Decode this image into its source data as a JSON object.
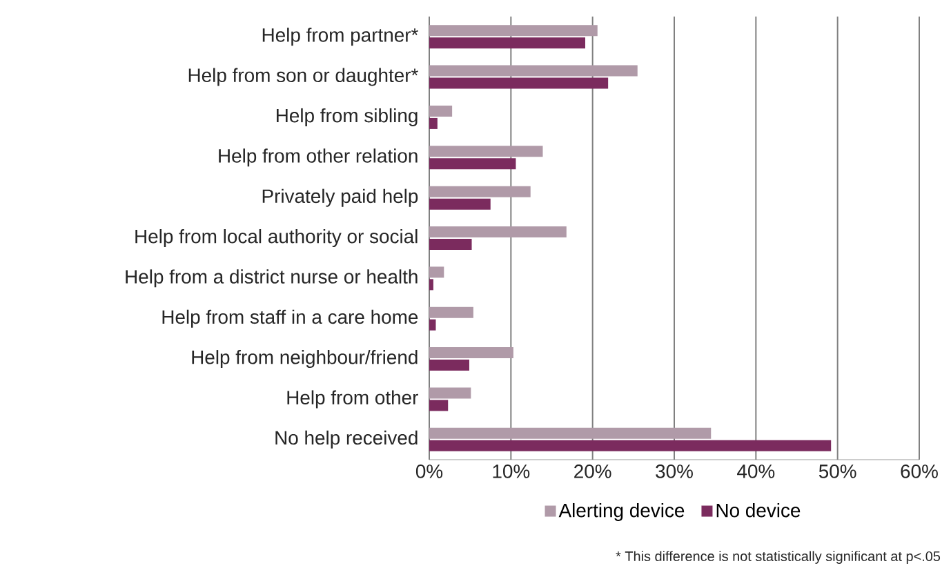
{
  "chart_data": {
    "type": "bar",
    "orientation": "horizontal",
    "categories": [
      "Help from partner*",
      "Help from son or daughter*",
      "Help from sibling",
      "Help from other relation",
      "Privately paid help",
      "Help from local authority or social",
      "Help from a district nurse or health",
      "Help from staff in a care home",
      "Help from neighbour/friend",
      "Help from other",
      "No help received"
    ],
    "series": [
      {
        "name": "Alerting device",
        "color": "#b09aa8",
        "values": [
          20.6,
          25.5,
          2.8,
          13.9,
          12.4,
          16.8,
          1.8,
          5.4,
          10.3,
          5.1,
          34.5
        ]
      },
      {
        "name": "No device",
        "color": "#7b2b5e",
        "values": [
          19.1,
          21.9,
          1.0,
          10.6,
          7.5,
          5.2,
          0.5,
          0.8,
          4.9,
          2.3,
          49.2
        ]
      }
    ],
    "xlim": [
      0,
      60
    ],
    "xticks": [
      {
        "value": 0,
        "label": "0%"
      },
      {
        "value": 10,
        "label": "10%"
      },
      {
        "value": 20,
        "label": "20%"
      },
      {
        "value": 30,
        "label": "30%"
      },
      {
        "value": 40,
        "label": "40%"
      },
      {
        "value": 50,
        "label": "50%"
      },
      {
        "value": 60,
        "label": "60%"
      }
    ],
    "grid": "x",
    "legend": "bottom",
    "annotations": [
      "* This difference is not statistically significant at p<.05"
    ]
  }
}
